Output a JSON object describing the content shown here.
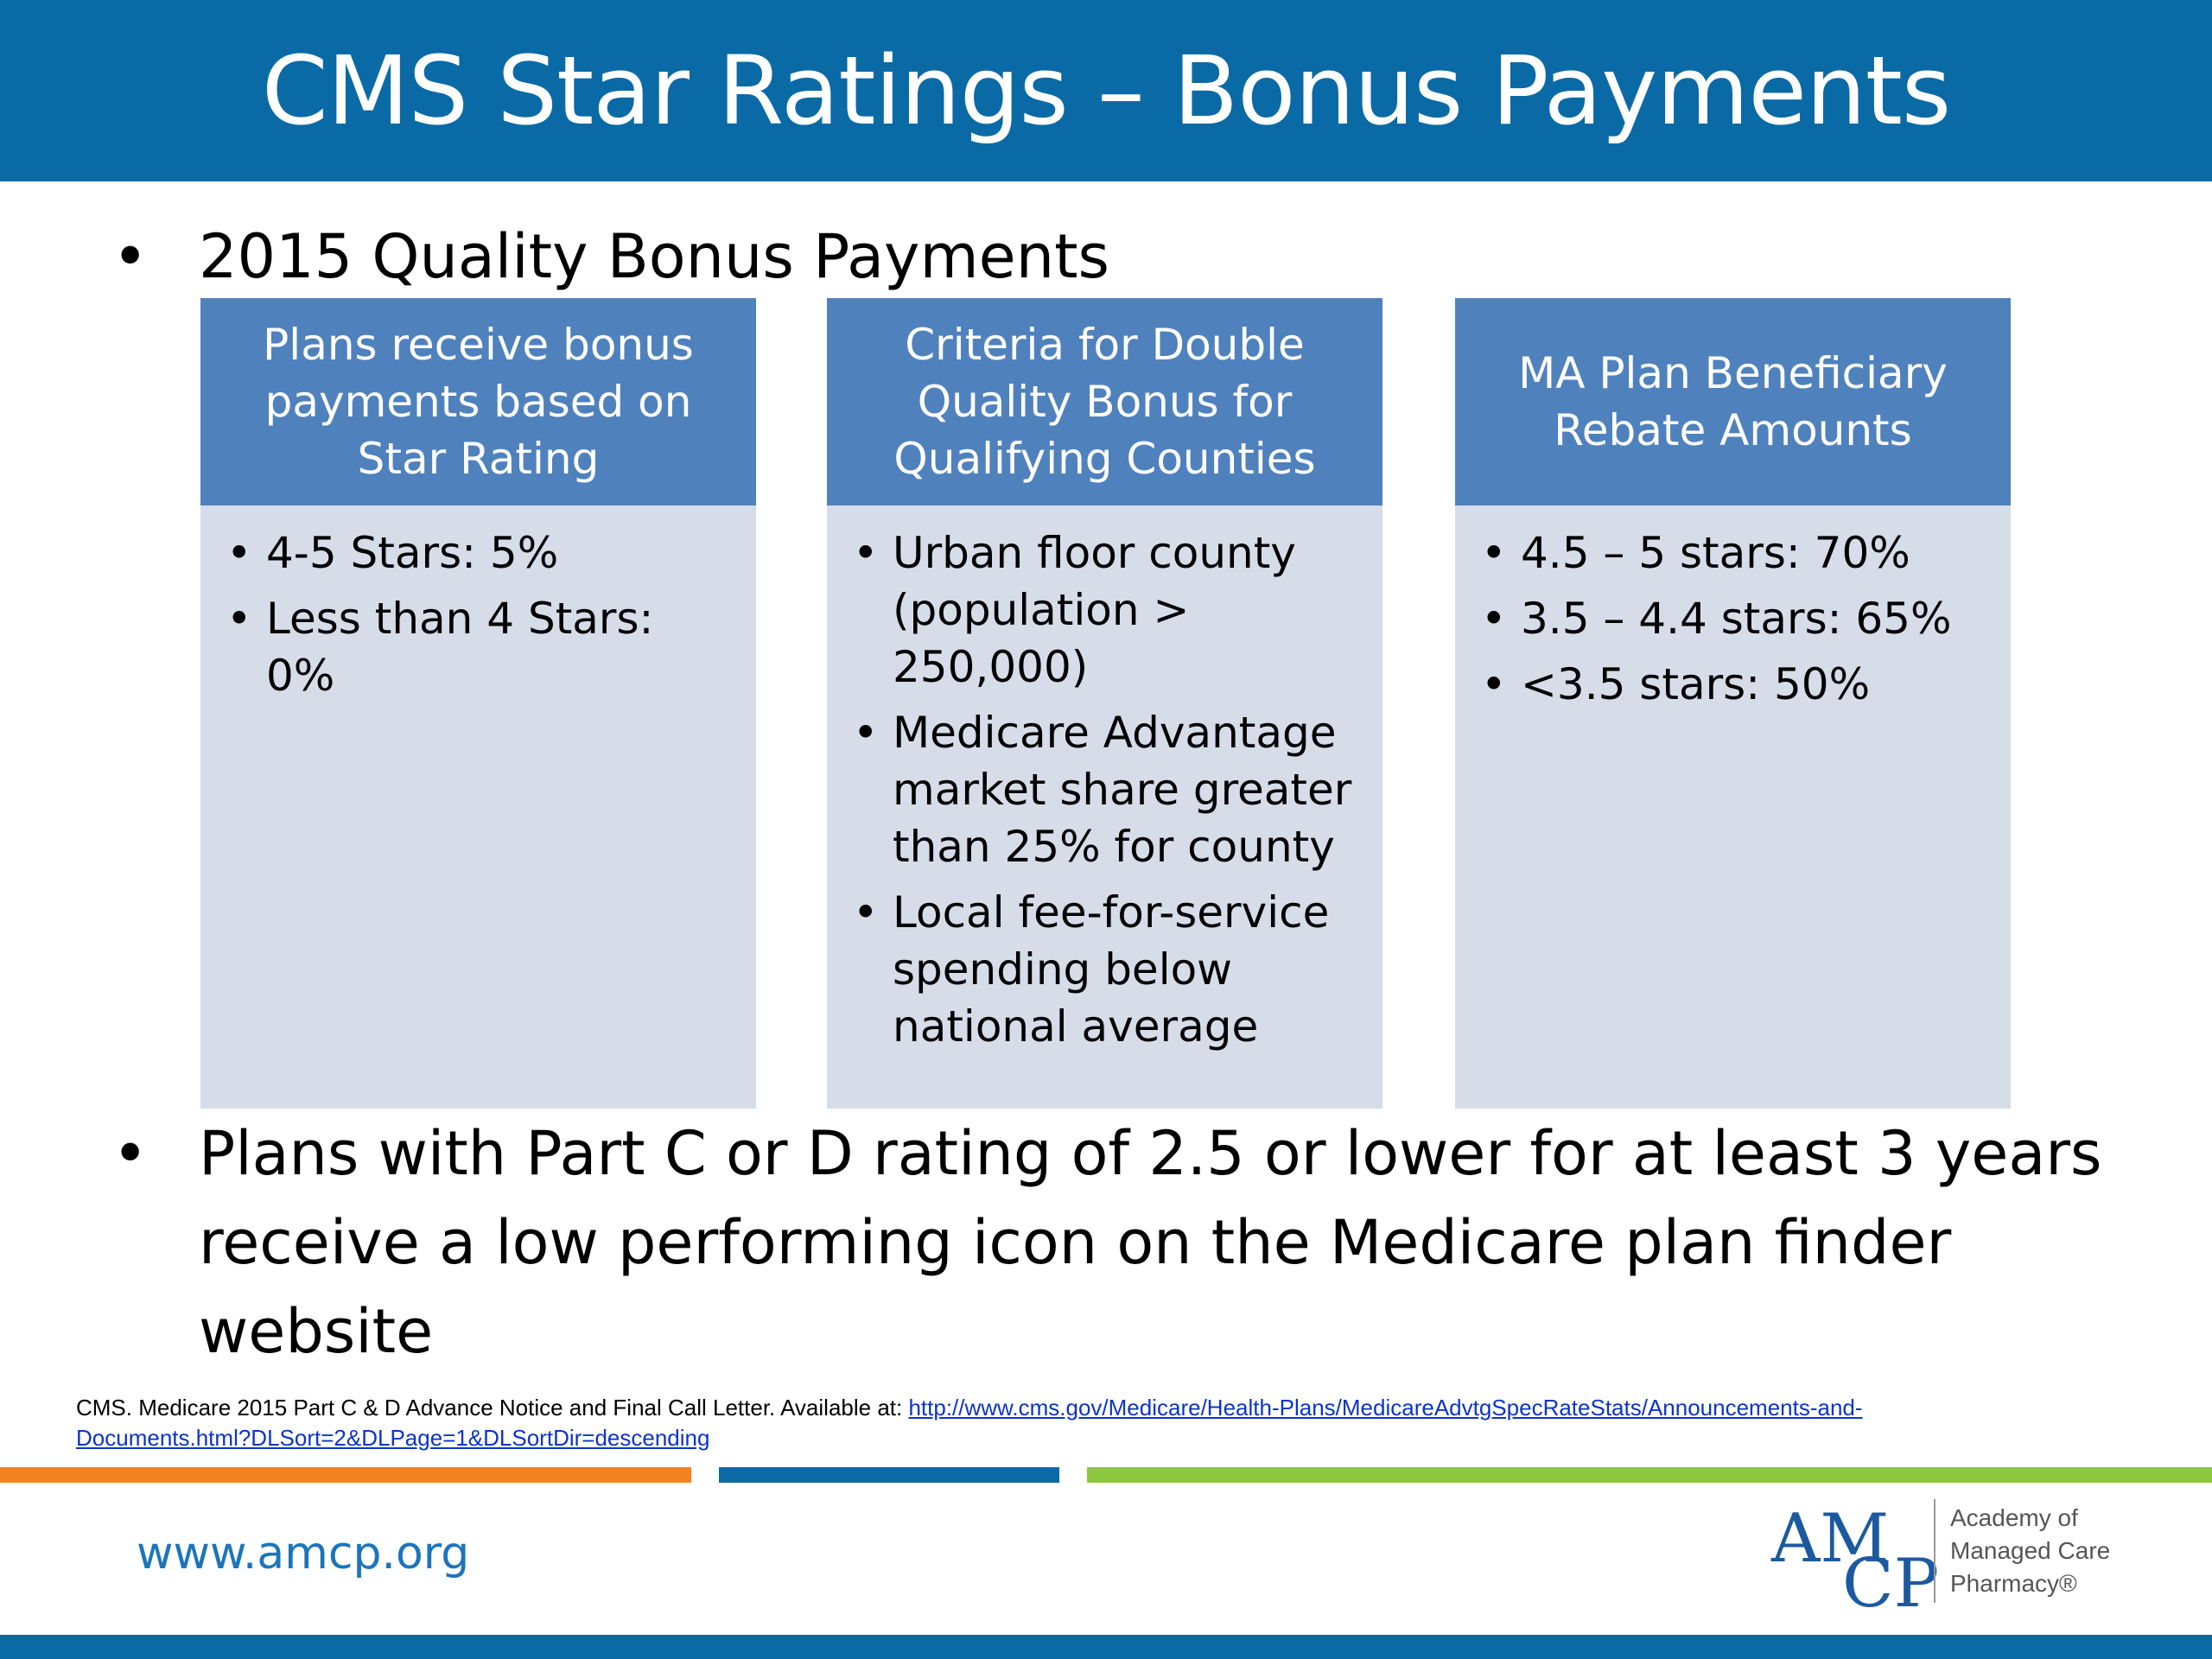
{
  "title": "CMS Star Ratings – Bonus Payments",
  "bullet_top": "2015 Quality Bonus Payments",
  "boxes": [
    {
      "header": "Plans receive bonus payments based on Star Rating",
      "items": [
        "4-5 Stars:  5%",
        "Less than 4 Stars:  0%"
      ]
    },
    {
      "header": "Criteria for Double Quality Bonus for Qualifying Counties",
      "items": [
        "Urban floor county (population > 250,000)",
        "Medicare Advantage market share greater than 25% for county",
        "Local fee-for-service spending below national average"
      ]
    },
    {
      "header": "MA Plan Beneficiary Rebate Amounts",
      "items": [
        "4.5 – 5 stars: 70%",
        "3.5 – 4.4 stars: 65%",
        "<3.5 stars: 50%"
      ]
    }
  ],
  "bullet_bottom": "Plans with Part C or D rating of 2.5 or lower for at least 3 years receive a low performing icon on the Medicare plan finder website",
  "citation": {
    "text": "CMS.  Medicare 2015 Part C & D Advance Notice and Final Call Letter. Available at: ",
    "link": "http://www.cms.gov/Medicare/Health-Plans/MedicareAdvtgSpecRateStats/Announcements-and-Documents.html?DLSort=2&DLPage=1&DLSortDir=descending"
  },
  "footer": {
    "url": "www.amcp.org",
    "logo_am": "AM",
    "logo_cp": "CP",
    "logo_name_lines": [
      "Academy of",
      "Managed Care",
      "Pharmacy®"
    ]
  },
  "colors": {
    "title_bar": "#0a6aa6",
    "box_header": "#4f81bd",
    "box_body": "#d6dde9",
    "stripe_orange": "#f58220",
    "stripe_blue": "#0a6aa6",
    "stripe_green": "#8dc63f"
  }
}
